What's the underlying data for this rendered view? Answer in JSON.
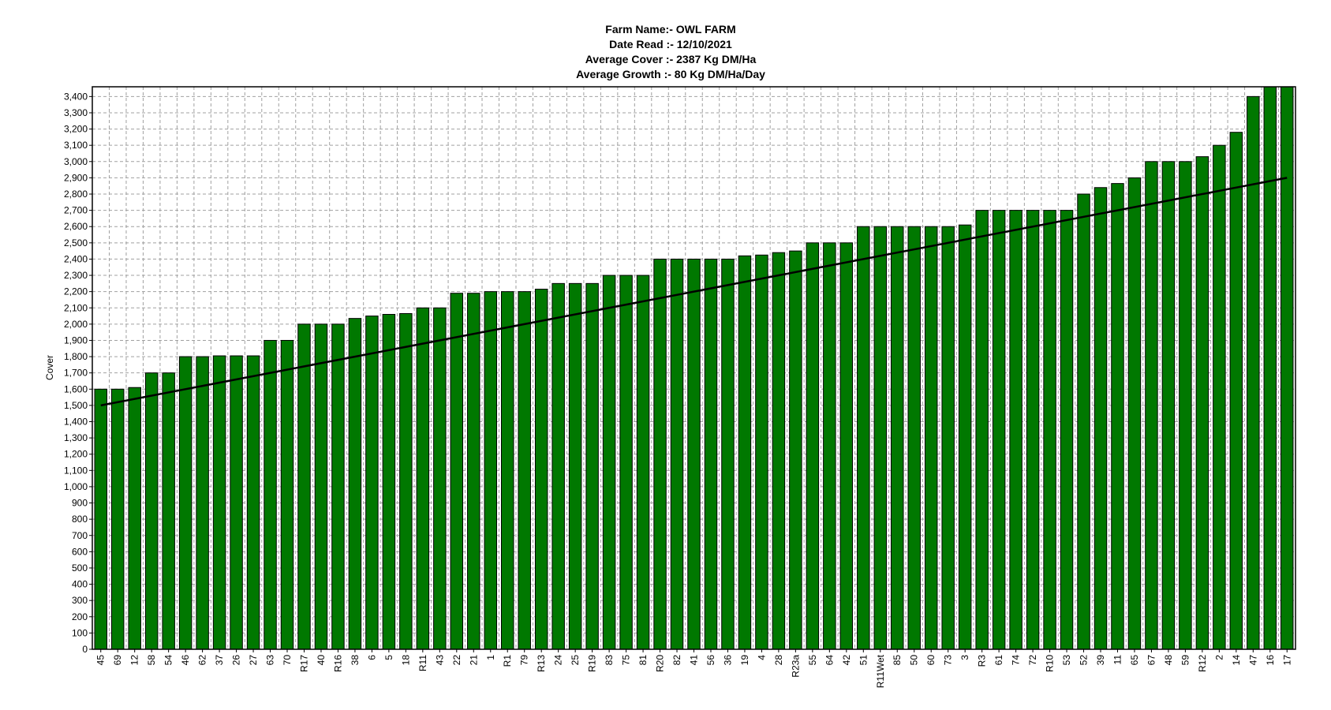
{
  "header": {
    "farm_name": "Farm Name:- OWL FARM",
    "date_read": "Date Read :- 12/10/2021",
    "average_cover": "Average Cover :- 2387 Kg DM/Ha",
    "average_growth": "Average Growth :- 80 Kg DM/Ha/Day"
  },
  "colors": {
    "bar_fill": "#007800",
    "bar_edge": "#000000",
    "grid": "#a0a0a0",
    "trend": "#000000"
  },
  "chart_data": {
    "type": "bar",
    "title": "Farm Name:- OWL FARM",
    "ylabel": "Cover",
    "xlabel": "",
    "ylim": [
      0,
      3460
    ],
    "yticks": [
      0,
      100,
      200,
      300,
      400,
      500,
      600,
      700,
      800,
      900,
      1000,
      1100,
      1200,
      1300,
      1400,
      1500,
      1600,
      1700,
      1800,
      1900,
      2000,
      2100,
      2200,
      2300,
      2400,
      2500,
      2600,
      2700,
      2800,
      2900,
      3000,
      3100,
      3200,
      3300,
      3400
    ],
    "ytick_labels": [
      "0",
      "100",
      "200",
      "300",
      "400",
      "500",
      "600",
      "700",
      "800",
      "900",
      "1,000",
      "1,100",
      "1,200",
      "1,300",
      "1,400",
      "1,500",
      "1,600",
      "1,700",
      "1,800",
      "1,900",
      "2,000",
      "2,100",
      "2,200",
      "2,300",
      "2,400",
      "2,500",
      "2,600",
      "2,700",
      "2,800",
      "2,900",
      "3,000",
      "3,100",
      "3,200",
      "3,300",
      "3,400"
    ],
    "grid": true,
    "categories": [
      "45",
      "69",
      "12",
      "58",
      "54",
      "46",
      "62",
      "37",
      "26",
      "27",
      "63",
      "70",
      "R17",
      "40",
      "R16",
      "38",
      "6",
      "5",
      "18",
      "R11",
      "43",
      "22",
      "21",
      "1",
      "R1",
      "79",
      "R13",
      "24",
      "25",
      "R19",
      "83",
      "75",
      "81",
      "R20",
      "82",
      "41",
      "56",
      "36",
      "19",
      "4",
      "28",
      "R23a",
      "55",
      "64",
      "42",
      "51",
      "R11Wet",
      "85",
      "50",
      "60",
      "73",
      "3",
      "R3",
      "61",
      "74",
      "72",
      "R10",
      "53",
      "52",
      "39",
      "11",
      "65",
      "67",
      "48",
      "59",
      "R12",
      "2",
      "14",
      "47",
      "16",
      "17"
    ],
    "values": [
      1600,
      1600,
      1610,
      1700,
      1700,
      1800,
      1800,
      1805,
      1805,
      1805,
      1900,
      1900,
      2000,
      2000,
      2000,
      2035,
      2050,
      2060,
      2065,
      2100,
      2100,
      2190,
      2190,
      2200,
      2200,
      2200,
      2215,
      2250,
      2250,
      2250,
      2300,
      2300,
      2300,
      2400,
      2400,
      2400,
      2400,
      2400,
      2420,
      2425,
      2440,
      2450,
      2500,
      2500,
      2500,
      2600,
      2600,
      2600,
      2600,
      2600,
      2600,
      2610,
      2700,
      2700,
      2700,
      2700,
      2700,
      2700,
      2800,
      2840,
      2865,
      2900,
      3000,
      3000,
      3000,
      3030,
      3100,
      3180,
      3400,
      3600,
      3600
    ],
    "trend_line": {
      "start": 1500,
      "end": 2900
    }
  }
}
